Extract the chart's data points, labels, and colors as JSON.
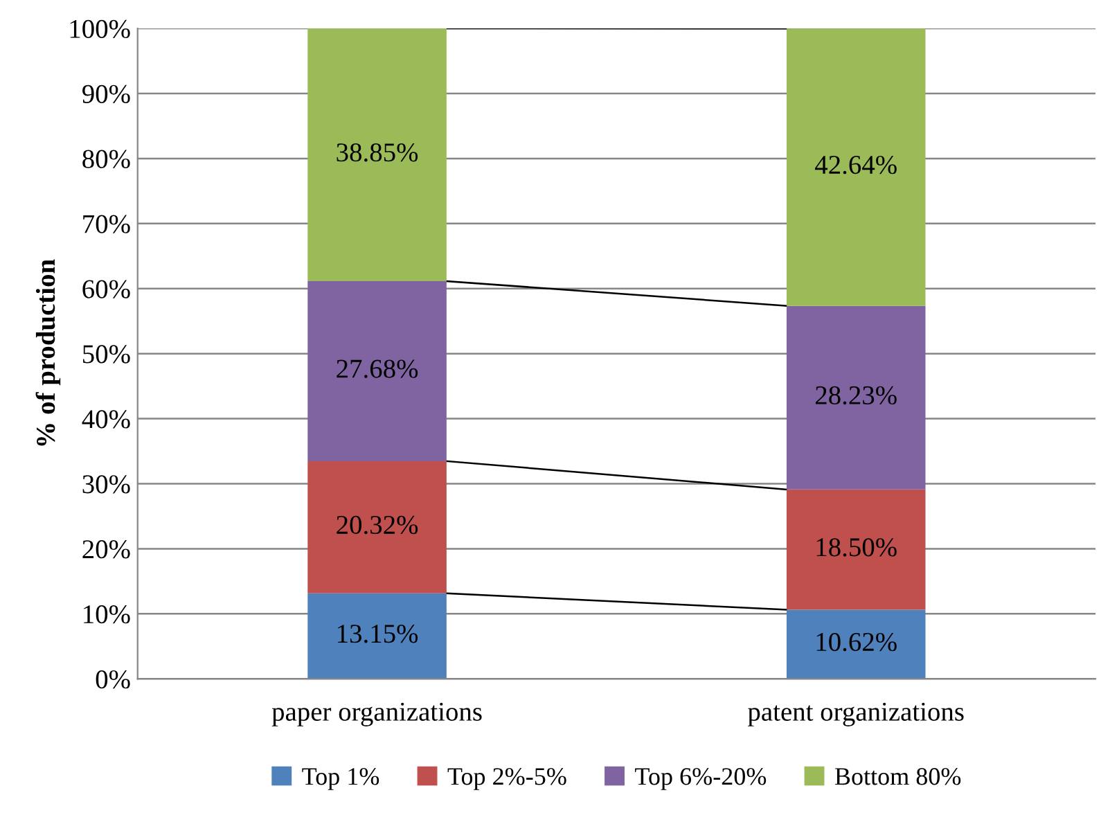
{
  "chart_data": {
    "type": "bar",
    "stacked": true,
    "ylabel": "% of production",
    "categories": [
      "paper organizations",
      "patent organizations"
    ],
    "series": [
      {
        "name": "Top 1%",
        "color": "#4f81bd",
        "values": [
          13.15,
          10.62
        ],
        "value_labels": [
          "13.15%",
          "10.62%"
        ]
      },
      {
        "name": "Top 2%-5%",
        "color": "#c0504d",
        "values": [
          20.32,
          18.5
        ],
        "value_labels": [
          "20.32%",
          "18.50%"
        ]
      },
      {
        "name": "Top 6%-20%",
        "color": "#8064a2",
        "values": [
          27.68,
          28.23
        ],
        "value_labels": [
          "27.68%",
          "28.23%"
        ]
      },
      {
        "name": "Bottom 80%",
        "color": "#9bbb59",
        "values": [
          38.85,
          42.64
        ],
        "value_labels": [
          "38.85%",
          "42.64%"
        ]
      }
    ],
    "ylim": [
      0,
      100
    ],
    "yticks": [
      {
        "value": 0,
        "label": "0%"
      },
      {
        "value": 10,
        "label": "10%"
      },
      {
        "value": 20,
        "label": "20%"
      },
      {
        "value": 30,
        "label": "30%"
      },
      {
        "value": 40,
        "label": "40%"
      },
      {
        "value": 50,
        "label": "50%"
      },
      {
        "value": 60,
        "label": "60%"
      },
      {
        "value": 70,
        "label": "70%"
      },
      {
        "value": 80,
        "label": "80%"
      },
      {
        "value": 90,
        "label": "90%"
      },
      {
        "value": 100,
        "label": "100%"
      }
    ],
    "grid": "y",
    "legend": "bottom"
  }
}
